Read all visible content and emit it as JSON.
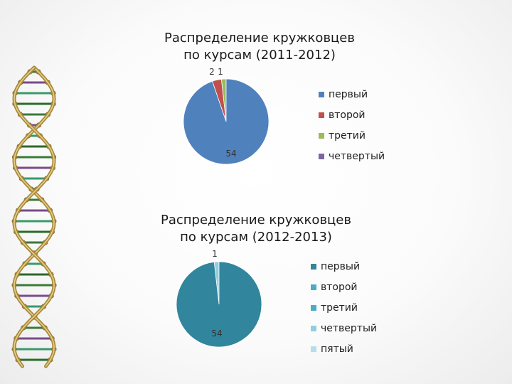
{
  "chart_data": [
    {
      "type": "pie",
      "title_line1": "Распределение кружковцев",
      "title_line2": "по курсам (2011-2012)",
      "categories": [
        "первый",
        "второй",
        "третий",
        "четвертый"
      ],
      "values": [
        54,
        2,
        1,
        0
      ],
      "colors": [
        "#4f81bd",
        "#c0504d",
        "#9bbb59",
        "#8064a2"
      ],
      "data_labels": [
        "54",
        "2",
        "1",
        ""
      ],
      "legend_position": "right"
    },
    {
      "type": "pie",
      "title_line1": "Распределение кружковцев",
      "title_line2": "по курсам (2012-2013)",
      "categories": [
        "первый",
        "второй",
        "третий",
        "четвертый",
        "пятый"
      ],
      "values": [
        54,
        0,
        0,
        1,
        0
      ],
      "colors": [
        "#31859c",
        "#4bacc6",
        "#4bacc6",
        "#93cddd",
        "#b7dee8"
      ],
      "data_labels": [
        "54",
        "",
        "",
        "1",
        ""
      ],
      "legend_position": "right"
    }
  ]
}
